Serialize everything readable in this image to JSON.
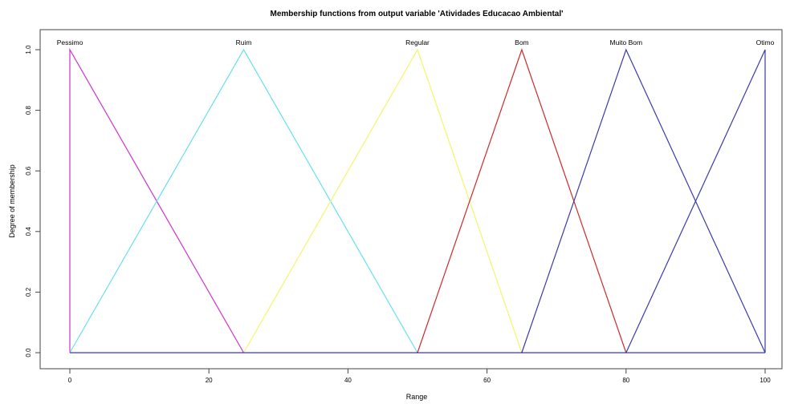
{
  "chart_data": {
    "type": "line",
    "title": "Membership functions from output variable 'Atividades Educacao Ambiental'",
    "xlabel": "Range",
    "ylabel": "Degree of membership",
    "xlim": [
      0,
      100
    ],
    "ylim": [
      0,
      1
    ],
    "xticks": [
      0,
      20,
      40,
      60,
      80,
      100
    ],
    "yticks": [
      "0.0",
      "0.2",
      "0.4",
      "0.6",
      "0.8",
      "1.0"
    ],
    "grid": false,
    "legend": "none",
    "baseline_color": "#0000cd",
    "series": [
      {
        "name": "Pessimo",
        "color": "#cc33cc",
        "x": [
          0,
          0,
          25
        ],
        "y": [
          0,
          1,
          0
        ]
      },
      {
        "name": "Ruim",
        "color": "#66e0f0",
        "x": [
          0,
          25,
          50
        ],
        "y": [
          0,
          1,
          0
        ]
      },
      {
        "name": "Regular",
        "color": "#f5f56a",
        "x": [
          25,
          50,
          65
        ],
        "y": [
          0,
          1,
          0
        ]
      },
      {
        "name": "Bom",
        "color": "#cc2a2a",
        "x": [
          50,
          65,
          80
        ],
        "y": [
          0,
          1,
          0
        ]
      },
      {
        "name": "Muito Bom",
        "color": "#3a3aaa",
        "x": [
          65,
          80,
          100
        ],
        "y": [
          0,
          1,
          0
        ]
      },
      {
        "name": "Otimo",
        "color": "#3a3aaa",
        "x": [
          80,
          100,
          100
        ],
        "y": [
          0,
          1,
          0
        ]
      }
    ]
  }
}
